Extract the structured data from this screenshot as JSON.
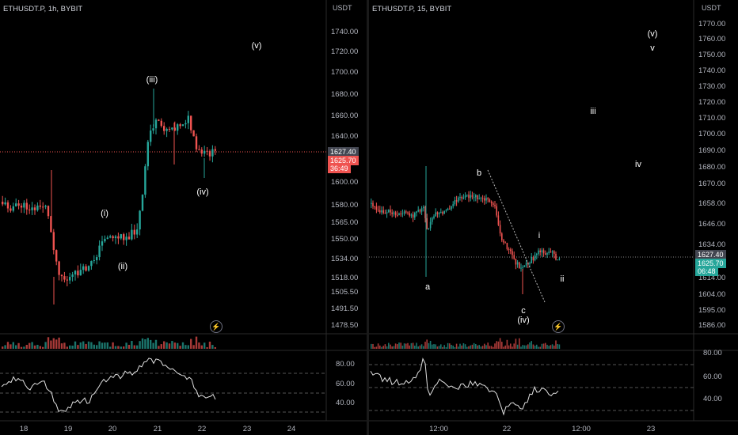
{
  "left": {
    "symbol": "ETHUSDT.P, 1h, BYBIT",
    "unit": "USDT",
    "price_ticks": [
      "1740.00",
      "1720.00",
      "1700.00",
      "1680.00",
      "1660.00",
      "1640.00",
      "1600.00",
      "1580.00",
      "1565.00",
      "1550.00",
      "1534.00",
      "1518.00",
      "1505.50",
      "1491.50",
      "1478.50"
    ],
    "last_close": "1627.40",
    "current_price": "1625.70",
    "countdown": "36:49",
    "time_ticks": [
      "18",
      "19",
      "20",
      "21",
      "22",
      "23",
      "24"
    ],
    "osc_ticks": [
      "80.00",
      "60.00",
      "40.00"
    ],
    "wave_labels": [
      "(v)",
      "(iii)",
      "(i)",
      "(ii)",
      "(iv)"
    ]
  },
  "right": {
    "symbol": "ETHUSDT.P, 15, BYBIT",
    "unit": "USDT",
    "price_ticks": [
      "1770.00",
      "1760.00",
      "1750.00",
      "1740.00",
      "1730.00",
      "1720.00",
      "1710.00",
      "1700.00",
      "1690.00",
      "1680.00",
      "1670.00",
      "1658.00",
      "1646.00",
      "1634.00",
      "1614.00",
      "1604.00",
      "1595.00",
      "1586.00"
    ],
    "last_close": "1627.40",
    "current_price": "1625.70",
    "countdown": "06:48",
    "time_ticks": [
      "12:00",
      "22",
      "12:00",
      "23"
    ],
    "osc_ticks": [
      "80.00",
      "60.00",
      "40.00"
    ],
    "wave_labels": [
      "(v)",
      "v",
      "iii",
      "iv",
      "b",
      "i",
      "a",
      "ii",
      "c",
      "(iv)"
    ]
  },
  "colors": {
    "up": "#26a69a",
    "down": "#ef5350",
    "bg": "#000000",
    "text": "#b2b5be",
    "badge_red": "#ef5350",
    "badge_teal": "#26a69a",
    "badge_gray": "#434651"
  }
}
